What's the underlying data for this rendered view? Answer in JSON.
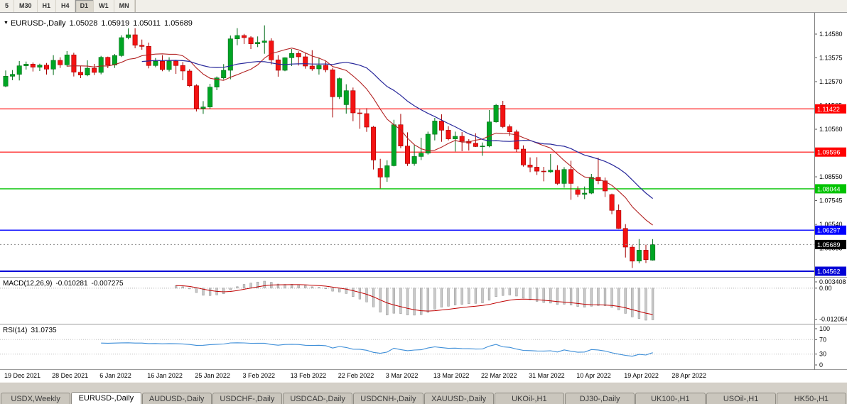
{
  "toolbar": {
    "timeframes": [
      "5",
      "M30",
      "H1",
      "H4",
      "D1",
      "W1",
      "MN"
    ],
    "active_timeframe": "D1"
  },
  "chart": {
    "title": {
      "marker": "▼",
      "symbol": "EURUSD-,Daily",
      "open": "1.05028",
      "high": "1.05919",
      "low": "1.05011",
      "close": "1.05689"
    },
    "y_axis_ticks": [
      "1.14580",
      "1.13575",
      "1.12570",
      "1.11565",
      "1.10560",
      "1.09555",
      "1.08550",
      "1.07545",
      "1.06540",
      "1.05535"
    ],
    "date_labels": [
      "19 Dec 2021",
      "28 Dec 2021",
      "6 Jan 2022",
      "16 Jan 2022",
      "25 Jan 2022",
      "3 Feb 2022",
      "13 Feb 2022",
      "22 Feb 2022",
      "3 Mar 2022",
      "13 Mar 2022",
      "22 Mar 2022",
      "31 Mar 2022",
      "10 Apr 2022",
      "19 Apr 2022",
      "28 Apr 2022"
    ],
    "hlines": [
      {
        "value": 1.11422,
        "label": "1.11422",
        "color": "#FF0000",
        "width": 1.2
      },
      {
        "value": 1.09596,
        "label": "1.09596",
        "color": "#FF0000",
        "width": 1.2
      },
      {
        "value": 1.08044,
        "label": "1.08044",
        "color": "#00C300",
        "width": 1.4
      },
      {
        "value": 1.06297,
        "label": "1.06297",
        "color": "#0000FF",
        "width": 1.4
      },
      {
        "value": 1.04562,
        "label": "1.04562",
        "color": "#0000D6",
        "width": 2
      }
    ],
    "bid": {
      "value": 1.05689,
      "label": "1.05689",
      "color": "#000000"
    },
    "colors": {
      "bull": "#00A524",
      "bull_dark": "#006B17",
      "bear": "#F31212",
      "bear_dark": "#A50000",
      "ma_fast": "#B22222",
      "ma_slow": "#28289B",
      "macd_hist": "#C9C9C9",
      "macd_hist_border": "#8F8F8F",
      "macd_signal": "#C00000",
      "rsi_line": "#3D8ED8"
    }
  },
  "macd": {
    "name": "MACD(12,26,9)",
    "value1": "-0.010281",
    "value2": "-0.007275",
    "fast": 12,
    "slow": 26,
    "signal": 9,
    "ticks": [
      {
        "v": 0.003408,
        "label": "0.003408"
      },
      {
        "v": 0,
        "label": "0.00"
      },
      {
        "v": -0.012054,
        "label": "-0.012054"
      }
    ]
  },
  "rsi": {
    "name": "RSI(14)",
    "value": "31.0735",
    "period": 14,
    "ticks": [
      {
        "v": 100,
        "label": "100"
      },
      {
        "v": 70,
        "label": "70"
      },
      {
        "v": 30,
        "label": "30"
      },
      {
        "v": 0,
        "label": "0"
      }
    ],
    "levels": [
      70,
      30
    ]
  },
  "tabs": {
    "items": [
      {
        "label": "USDX,Weekly",
        "active": false
      },
      {
        "label": "EURUSD-,Daily",
        "active": true
      },
      {
        "label": "AUDUSD-,Daily",
        "active": false
      },
      {
        "label": "USDCHF-,Daily",
        "active": false
      },
      {
        "label": "USDCAD-,Daily",
        "active": false
      },
      {
        "label": "USDCNH-,Daily",
        "active": false
      },
      {
        "label": "XAUUSD-,Daily",
        "active": false
      },
      {
        "label": "UKOil-,H1",
        "active": false
      },
      {
        "label": "DJ30-,Daily",
        "active": false
      },
      {
        "label": "UK100-,H1",
        "active": false
      },
      {
        "label": "USOil-,H1",
        "active": false
      },
      {
        "label": "HK50-,H1",
        "active": false
      }
    ]
  },
  "chart_data": {
    "type": "candlestick",
    "symbol": "EURUSD",
    "timeframe": "Daily",
    "overlays": [
      {
        "type": "sma",
        "period": 10,
        "color": "#B22222"
      },
      {
        "type": "sma",
        "period": 21,
        "color": "#28289B"
      }
    ],
    "candles": [
      [
        1.1238,
        1.1304,
        1.1234,
        1.128
      ],
      [
        1.128,
        1.1306,
        1.1263,
        1.1288
      ],
      [
        1.1288,
        1.1344,
        1.1262,
        1.1324
      ],
      [
        1.1324,
        1.1342,
        1.1308,
        1.1331
      ],
      [
        1.1331,
        1.1338,
        1.13,
        1.1318
      ],
      [
        1.1318,
        1.1333,
        1.1302,
        1.1327
      ],
      [
        1.1327,
        1.1336,
        1.1287,
        1.131
      ],
      [
        1.131,
        1.1369,
        1.1285,
        1.1347
      ],
      [
        1.1347,
        1.136,
        1.1315,
        1.1328
      ],
      [
        1.1328,
        1.1386,
        1.1321,
        1.137
      ],
      [
        1.137,
        1.1379,
        1.1279,
        1.1297
      ],
      [
        1.1297,
        1.1323,
        1.1272,
        1.1285
      ],
      [
        1.1285,
        1.1347,
        1.128,
        1.1314
      ],
      [
        1.1314,
        1.1332,
        1.1285,
        1.1296
      ],
      [
        1.1296,
        1.1366,
        1.1288,
        1.136
      ],
      [
        1.136,
        1.1363,
        1.1314,
        1.1327
      ],
      [
        1.1327,
        1.1374,
        1.1315,
        1.1367
      ],
      [
        1.1367,
        1.1453,
        1.1361,
        1.1443
      ],
      [
        1.1443,
        1.1482,
        1.1436,
        1.1455
      ],
      [
        1.1455,
        1.1483,
        1.1398,
        1.1411
      ],
      [
        1.1411,
        1.1435,
        1.1392,
        1.1406
      ],
      [
        1.1406,
        1.1422,
        1.1313,
        1.1325
      ],
      [
        1.1325,
        1.1357,
        1.1318,
        1.1343
      ],
      [
        1.1343,
        1.1369,
        1.1301,
        1.1308
      ],
      [
        1.1308,
        1.136,
        1.13,
        1.1344
      ],
      [
        1.1344,
        1.1349,
        1.129,
        1.1325
      ],
      [
        1.1325,
        1.134,
        1.1263,
        1.1302
      ],
      [
        1.1302,
        1.131,
        1.1234,
        1.124
      ],
      [
        1.124,
        1.1246,
        1.1131,
        1.1144
      ],
      [
        1.1144,
        1.1175,
        1.1121,
        1.115
      ],
      [
        1.115,
        1.1248,
        1.1141,
        1.1234
      ],
      [
        1.1234,
        1.1279,
        1.1221,
        1.1273
      ],
      [
        1.1273,
        1.1331,
        1.1266,
        1.1305
      ],
      [
        1.1305,
        1.1452,
        1.1267,
        1.1438
      ],
      [
        1.1438,
        1.1483,
        1.1411,
        1.1452
      ],
      [
        1.1452,
        1.1459,
        1.1416,
        1.1443
      ],
      [
        1.1443,
        1.1449,
        1.1395,
        1.1417
      ],
      [
        1.1417,
        1.1448,
        1.1403,
        1.1423
      ],
      [
        1.1423,
        1.1495,
        1.1375,
        1.1429
      ],
      [
        1.1429,
        1.144,
        1.133,
        1.1349
      ],
      [
        1.1349,
        1.1369,
        1.1278,
        1.1305
      ],
      [
        1.1305,
        1.136,
        1.1301,
        1.1358
      ],
      [
        1.1358,
        1.1395,
        1.1323,
        1.1376
      ],
      [
        1.1376,
        1.1385,
        1.1325,
        1.1362
      ],
      [
        1.1362,
        1.138,
        1.1312,
        1.1323
      ],
      [
        1.1323,
        1.139,
        1.1303,
        1.1311
      ],
      [
        1.1311,
        1.1359,
        1.1287,
        1.1326
      ],
      [
        1.1326,
        1.1344,
        1.1297,
        1.1307
      ],
      [
        1.1307,
        1.1315,
        1.1106,
        1.1193
      ],
      [
        1.1193,
        1.1274,
        1.1184,
        1.127
      ],
      [
        1.116,
        1.1246,
        1.1122,
        1.1219
      ],
      [
        1.1219,
        1.1232,
        1.109,
        1.1125
      ],
      [
        1.1125,
        1.1143,
        1.1058,
        1.1122
      ],
      [
        1.1122,
        1.1145,
        1.1045,
        1.1065
      ],
      [
        1.1065,
        1.107,
        1.0886,
        1.0926
      ],
      [
        1.089,
        1.0931,
        1.0806,
        1.0854
      ],
      [
        1.0854,
        1.0925,
        1.0834,
        1.0902
      ],
      [
        1.0902,
        1.1096,
        1.0899,
        1.1075
      ],
      [
        1.1075,
        1.1121,
        1.0976,
        1.0985
      ],
      [
        1.0985,
        1.1043,
        1.0901,
        1.0911
      ],
      [
        1.0911,
        1.0991,
        1.0902,
        1.0941
      ],
      [
        1.0941,
        1.102,
        1.0926,
        1.0955
      ],
      [
        1.0955,
        1.1046,
        1.0949,
        1.1035
      ],
      [
        1.1035,
        1.1104,
        1.1009,
        1.1091
      ],
      [
        1.1091,
        1.1119,
        1.1003,
        1.1052
      ],
      [
        1.1052,
        1.1069,
        1.1009,
        1.1015
      ],
      [
        1.1015,
        1.1046,
        1.0962,
        1.1026
      ],
      [
        1.1026,
        1.1044,
        1.0963,
        1.1005
      ],
      [
        1.1005,
        1.1014,
        1.0966,
        1.0997
      ],
      [
        1.0997,
        1.1039,
        1.0981,
        1.0983
      ],
      [
        1.0983,
        1.1,
        1.0944,
        1.0985
      ],
      [
        1.0985,
        1.1137,
        1.098,
        1.1087
      ],
      [
        1.1087,
        1.1163,
        1.1084,
        1.1157
      ],
      [
        1.1157,
        1.1176,
        1.1061,
        1.1067
      ],
      [
        1.1067,
        1.1076,
        1.1028,
        1.1045
      ],
      [
        1.1045,
        1.1054,
        1.096,
        1.0972
      ],
      [
        1.0972,
        1.0988,
        1.0898,
        1.0905
      ],
      [
        1.0905,
        1.0937,
        1.0875,
        1.0896
      ],
      [
        1.0896,
        1.0938,
        1.0863,
        1.0879
      ],
      [
        1.0879,
        1.0897,
        1.0836,
        1.0876
      ],
      [
        1.0876,
        1.0951,
        1.0872,
        1.0883
      ],
      [
        1.0883,
        1.0904,
        1.0821,
        1.0827
      ],
      [
        1.0827,
        1.0896,
        1.0809,
        1.0886
      ],
      [
        1.0886,
        1.0923,
        1.0758,
        1.0827
      ],
      [
        1.08,
        1.0815,
        1.077,
        1.0781
      ],
      [
        1.0781,
        1.0814,
        1.0761,
        1.0786
      ],
      [
        1.0786,
        1.0867,
        1.0782,
        1.0853
      ],
      [
        1.0853,
        1.0936,
        1.0824,
        1.0838
      ],
      [
        1.0838,
        1.0852,
        1.077,
        1.0795
      ],
      [
        1.078,
        1.0784,
        1.0697,
        1.0713
      ],
      [
        1.0713,
        1.0738,
        1.0635,
        1.0637
      ],
      [
        1.0637,
        1.0655,
        1.0514,
        1.0558
      ],
      [
        1.0558,
        1.0567,
        1.047,
        1.0499
      ],
      [
        1.0499,
        1.0592,
        1.049,
        1.0545
      ],
      [
        1.0545,
        1.0568,
        1.0491,
        1.0505
      ],
      [
        1.05028,
        1.05919,
        1.05011,
        1.05689
      ]
    ]
  }
}
